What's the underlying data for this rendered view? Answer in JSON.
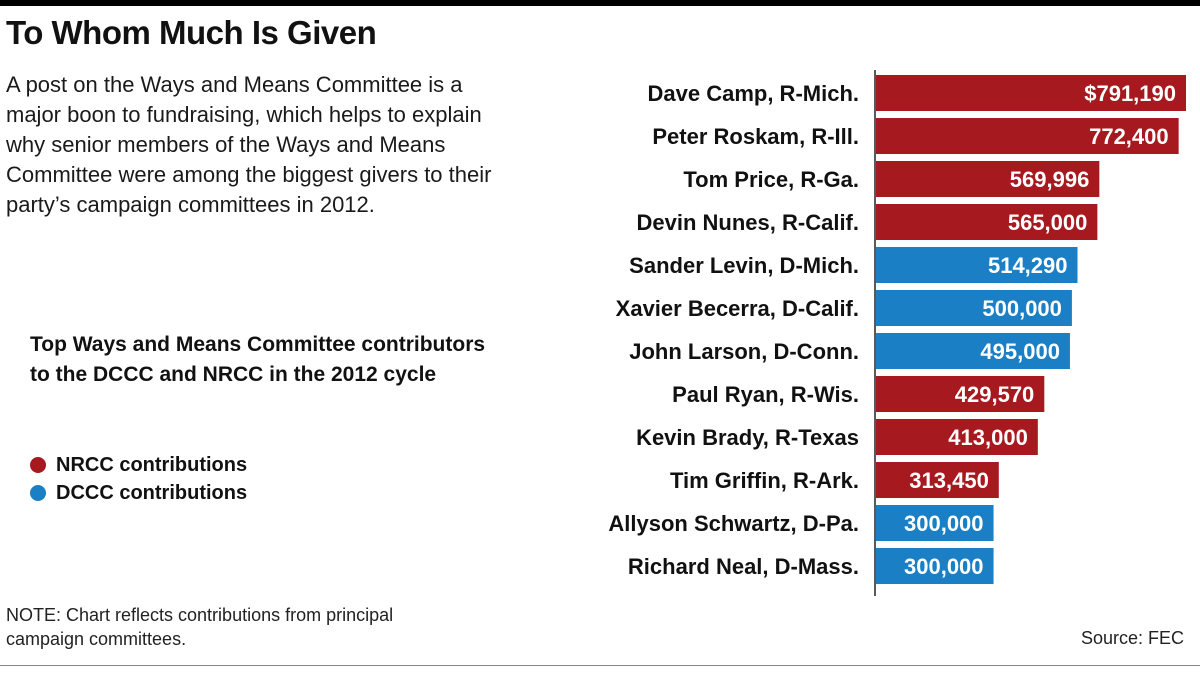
{
  "title": "To Whom Much Is Given",
  "intro": "A post on the Ways and Means Committee is a major boon to fundraising, which helps to explain why senior members of the Ways and Means Committee were among the biggest givers to their party’s campaign committees in 2012.",
  "subhead": "Top Ways and Means Committee contributors to the DCCC and NRCC in the 2012 cycle",
  "legend": [
    {
      "label": "NRCC contributions",
      "color": "#a6191e"
    },
    {
      "label": "DCCC contributions",
      "color": "#1a7fc4"
    }
  ],
  "note": "NOTE: Chart reflects contributions from principal campaign committees.",
  "source": "Source: FEC",
  "chart_data": {
    "type": "bar",
    "orientation": "horizontal",
    "xlim": [
      0,
      791190
    ],
    "categories": [
      "Dave Camp, R-Mich.",
      "Peter Roskam, R-Ill.",
      "Tom Price, R-Ga.",
      "Devin Nunes, R-Calif.",
      "Sander Levin, D-Mich.",
      "Xavier Becerra, D-Calif.",
      "John Larson, D-Conn.",
      "Paul Ryan, R-Wis.",
      "Kevin Brady, R-Texas",
      "Tim Griffin, R-Ark.",
      "Allyson Schwartz, D-Pa.",
      "Richard Neal, D-Mass."
    ],
    "values": [
      791190,
      772400,
      569996,
      565000,
      514290,
      500000,
      495000,
      429570,
      413000,
      313450,
      300000,
      300000
    ],
    "value_labels": [
      "$791,190",
      "772,400",
      "569,996",
      "565,000",
      "514,290",
      "500,000",
      "495,000",
      "429,570",
      "413,000",
      "313,450",
      "300,000",
      "300,000"
    ],
    "committee": [
      "NRCC",
      "NRCC",
      "NRCC",
      "NRCC",
      "DCCC",
      "DCCC",
      "DCCC",
      "NRCC",
      "NRCC",
      "NRCC",
      "DCCC",
      "DCCC"
    ],
    "colors": {
      "NRCC": "#a6191e",
      "DCCC": "#1a7fc4"
    }
  }
}
